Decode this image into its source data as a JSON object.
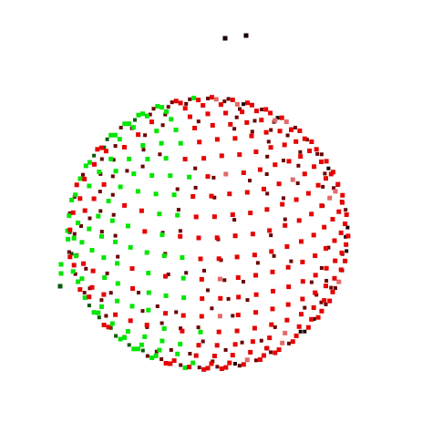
{
  "canvas": {
    "background": "#ffffff"
  },
  "sphere": {
    "dot_colors": {
      "green": "#00e600",
      "dark_green": "#0a5a0a",
      "red": "#e60000",
      "dark_red": "#6a0000",
      "near_black": "#1a0000",
      "pink": "#e36a6a"
    },
    "lat_rings": 24,
    "lon_segments": 40
  }
}
